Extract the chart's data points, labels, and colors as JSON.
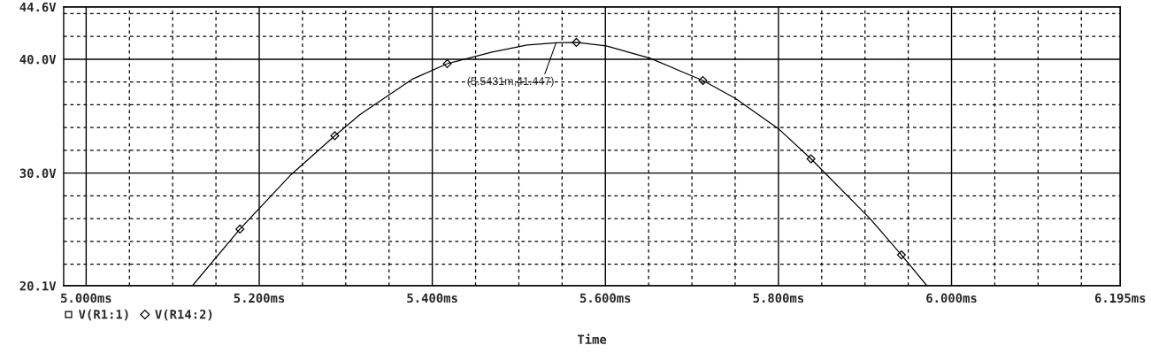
{
  "chart_data": {
    "type": "line",
    "xlabel": "Time",
    "xlim": [
      4.974,
      6.195
    ],
    "ylim": [
      20.1,
      44.6
    ],
    "xticks": [
      {
        "value": 5.0,
        "label": "5.000ms"
      },
      {
        "value": 5.05,
        "label": null
      },
      {
        "value": 5.1,
        "label": null
      },
      {
        "value": 5.15,
        "label": null
      },
      {
        "value": 5.2,
        "label": "5.200ms"
      },
      {
        "value": 5.25,
        "label": null
      },
      {
        "value": 5.3,
        "label": null
      },
      {
        "value": 5.35,
        "label": null
      },
      {
        "value": 5.4,
        "label": "5.400ms"
      },
      {
        "value": 5.45,
        "label": null
      },
      {
        "value": 5.5,
        "label": null
      },
      {
        "value": 5.55,
        "label": null
      },
      {
        "value": 5.6,
        "label": "5.600ms"
      },
      {
        "value": 5.65,
        "label": null
      },
      {
        "value": 5.7,
        "label": null
      },
      {
        "value": 5.75,
        "label": null
      },
      {
        "value": 5.8,
        "label": "5.800ms"
      },
      {
        "value": 5.85,
        "label": null
      },
      {
        "value": 5.9,
        "label": null
      },
      {
        "value": 5.95,
        "label": null
      },
      {
        "value": 6.0,
        "label": "6.000ms"
      },
      {
        "value": 6.05,
        "label": null
      },
      {
        "value": 6.1,
        "label": null
      },
      {
        "value": 6.15,
        "label": null
      },
      {
        "value": 6.195,
        "label": "6.195ms"
      }
    ],
    "yticks": [
      {
        "value": 20.1,
        "label": "20.1V"
      },
      {
        "value": 22,
        "label": null
      },
      {
        "value": 24,
        "label": null
      },
      {
        "value": 26,
        "label": null
      },
      {
        "value": 28,
        "label": null
      },
      {
        "value": 30,
        "label": "30.0V"
      },
      {
        "value": 32,
        "label": null
      },
      {
        "value": 34,
        "label": null
      },
      {
        "value": 36,
        "label": null
      },
      {
        "value": 38,
        "label": null
      },
      {
        "value": 40,
        "label": "40.0V"
      },
      {
        "value": 42,
        "label": null
      },
      {
        "value": 44,
        "label": null
      },
      {
        "value": 44.6,
        "label": "44.6V"
      }
    ],
    "grid": true,
    "legend": "bottom left",
    "series": [
      {
        "color": "#000000",
        "marker": "none",
        "x": [
          5.1228,
          5.1777,
          5.2355,
          5.2873,
          5.3168,
          5.3777,
          5.4173,
          5.469,
          5.5096,
          5.5431,
          5.5665,
          5.601,
          5.6518,
          5.7127,
          5.7503,
          5.801,
          5.8376,
          5.9056,
          5.9421,
          5.9716
        ],
        "values": [
          20.1,
          25.08,
          29.77,
          33.28,
          35.16,
          38.28,
          39.61,
          40.63,
          41.25,
          41.447,
          41.48,
          41.17,
          40.08,
          38.13,
          36.56,
          33.83,
          31.25,
          26.02,
          22.81,
          20.1
        ]
      },
      {
        "type": "scatter",
        "name": "V(R1:1)",
        "color": "#000000",
        "marker": "square"
      },
      {
        "type": "scatter",
        "name": "V(R14:2)",
        "color": "#000000",
        "marker": "diamond",
        "x": [
          5.1777,
          5.2873,
          5.4173,
          5.5665,
          5.7127,
          5.8376,
          5.9421
        ],
        "values": [
          25.08,
          33.28,
          39.61,
          41.48,
          38.13,
          31.25,
          22.81
        ]
      }
    ],
    "annotations": [
      {
        "text": "(5.5431m,41.447)",
        "x": 5.5431,
        "y": 41.447
      }
    ]
  }
}
